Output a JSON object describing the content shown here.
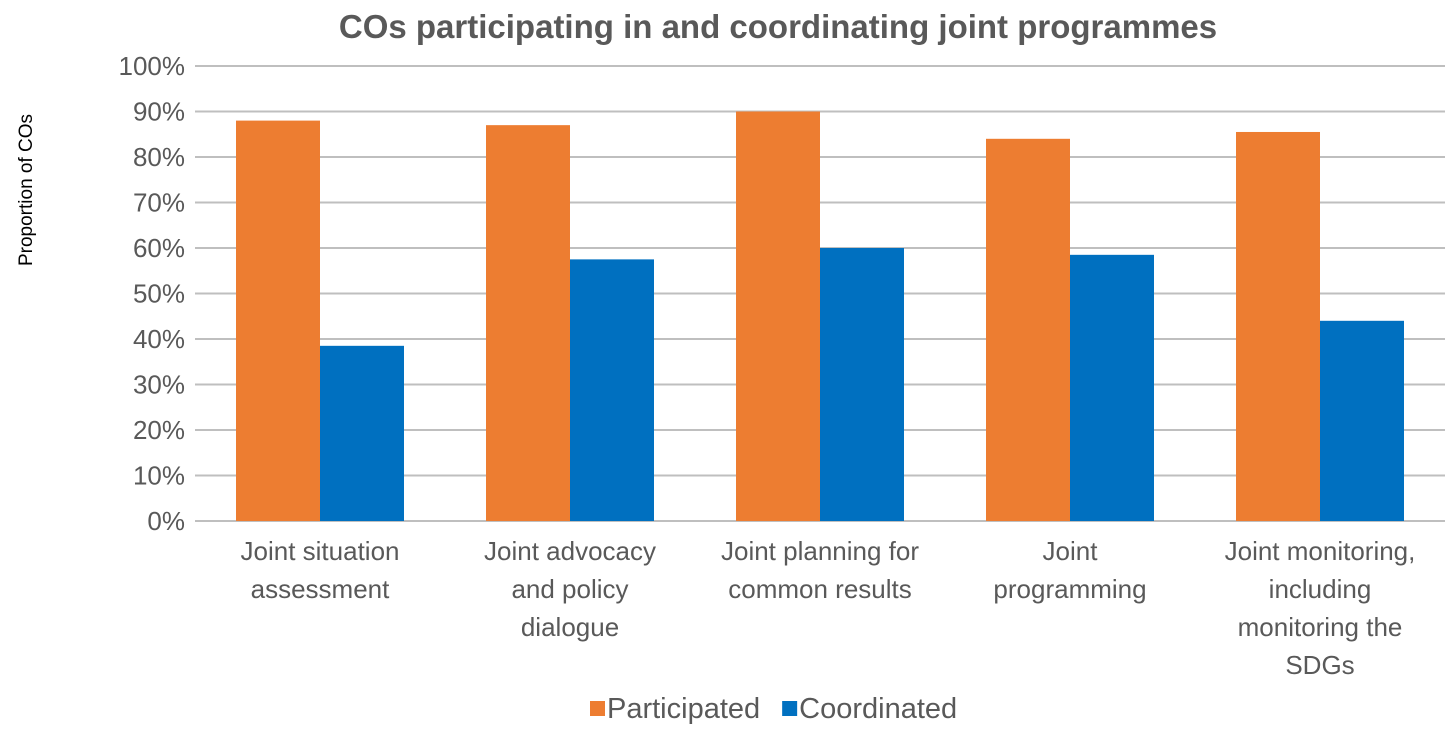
{
  "chart_data": {
    "type": "bar",
    "title": "COs participating in and coordinating joint programmes",
    "ylabel": "Proportion of COs",
    "xlabel": "",
    "ylim": [
      0,
      100
    ],
    "y_ticks": [
      0,
      10,
      20,
      30,
      40,
      50,
      60,
      70,
      80,
      90,
      100
    ],
    "y_tick_labels": [
      "0%",
      "10%",
      "20%",
      "30%",
      "40%",
      "50%",
      "60%",
      "70%",
      "80%",
      "90%",
      "100%"
    ],
    "grid": true,
    "legend_position": "bottom",
    "categories": [
      [
        "Joint situation",
        "assessment"
      ],
      [
        "Joint advocacy",
        "and policy",
        "dialogue"
      ],
      [
        "Joint planning for",
        "common results"
      ],
      [
        "Joint",
        "programming"
      ],
      [
        "Joint monitoring,",
        "including",
        "monitoring the",
        "SDGs"
      ]
    ],
    "series": [
      {
        "name": "Participated",
        "color": "#ed7d31",
        "values": [
          88,
          87,
          90,
          84,
          85.5
        ]
      },
      {
        "name": "Coordinated",
        "color": "#0070c0",
        "values": [
          38.5,
          57.5,
          60,
          58.5,
          44
        ]
      }
    ]
  }
}
